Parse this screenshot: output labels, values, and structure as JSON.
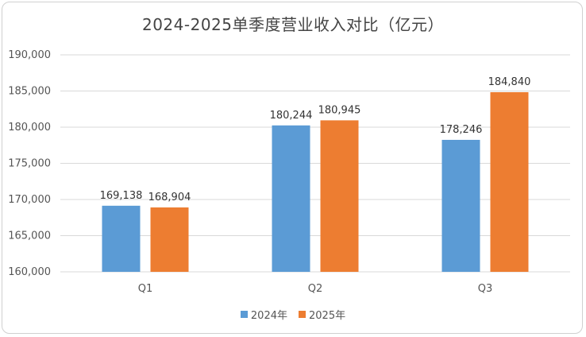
{
  "chart_data": {
    "type": "bar",
    "title": "2024-2025单季度营业收入对比（亿元）",
    "categories": [
      "Q1",
      "Q2",
      "Q3"
    ],
    "series": [
      {
        "name": "2024年",
        "values": [
          169138,
          180244,
          178246
        ],
        "labels": [
          "169,138",
          "180,244",
          "178,246"
        ],
        "color": "#5b9bd5"
      },
      {
        "name": "2025年",
        "values": [
          168904,
          180945,
          184840
        ],
        "labels": [
          "168,904",
          "180,945",
          "184,840"
        ],
        "color": "#ed7d31"
      }
    ],
    "ylim": [
      160000,
      190000
    ],
    "yticks": [
      160000,
      165000,
      170000,
      175000,
      180000,
      185000,
      190000
    ],
    "ytick_labels": [
      "160,000",
      "165,000",
      "170,000",
      "175,000",
      "180,000",
      "185,000",
      "190,000"
    ],
    "grid": true,
    "legend_position": "bottom",
    "gridline_color": "#d9d9d9"
  }
}
